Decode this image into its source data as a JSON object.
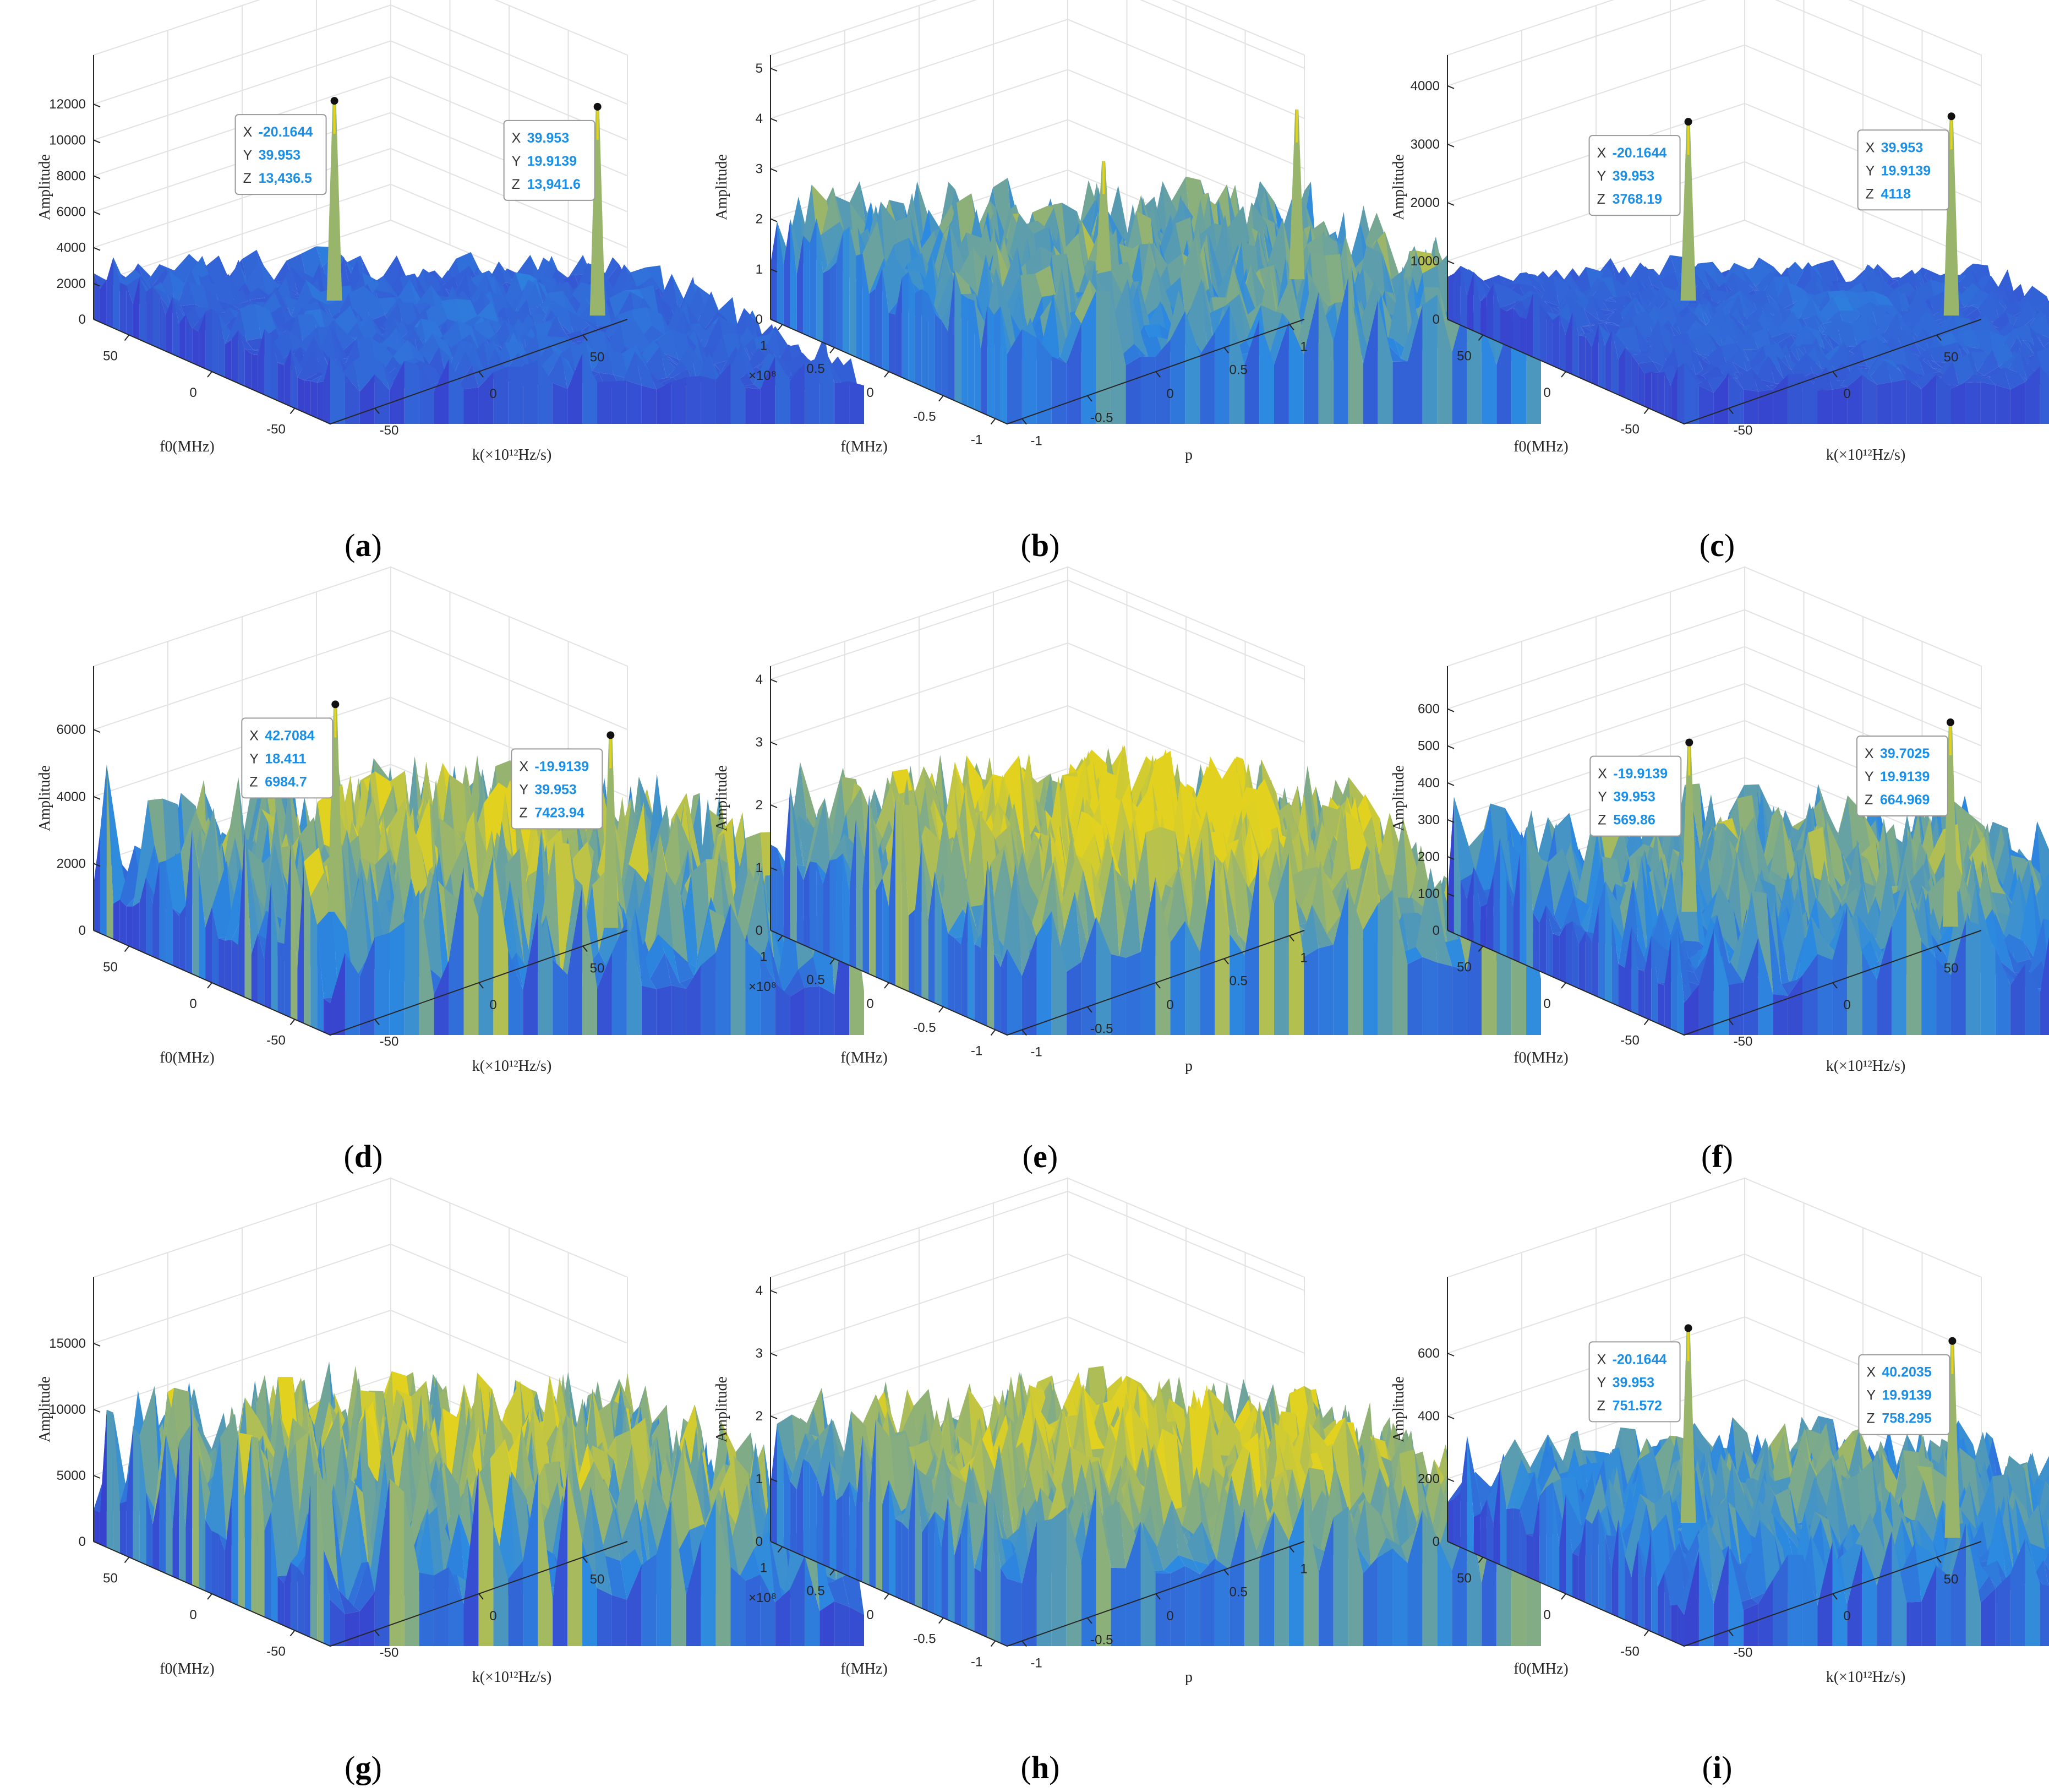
{
  "colors": {
    "axis": "#262626",
    "grid": "#e2e2e2",
    "tip_value": "#1a8fe8",
    "tip_border": "#9a9a9a",
    "surface_low": "#3c27c8",
    "surface_mid": "#2c8ae0",
    "surface_high": "#e2d21f"
  },
  "chart_data": [
    {
      "id": "a",
      "type": "surface",
      "caption": "a",
      "style": "kf",
      "xlabel": "k(×10¹²Hz/s)",
      "ylabel": "f0(MHz)",
      "zlabel": "Amplitude",
      "zticks": [
        "0",
        "2000",
        "4000",
        "6000",
        "8000",
        "10000",
        "12000"
      ],
      "zlim": [
        0,
        14000
      ],
      "yticks": [
        "50",
        "0",
        "-50"
      ],
      "xticks": [
        "-50",
        "0",
        "50"
      ],
      "noise": 0.16,
      "hump": 0.04,
      "peaks": [
        {
          "x": 39.953,
          "y": 19.9139,
          "z": 13941.6
        },
        {
          "x": -20.1644,
          "y": 39.953,
          "z": 13436.5
        }
      ],
      "tips": [
        {
          "X": "-20.1644",
          "Y": "39.953",
          "Z": "13,436.5"
        },
        {
          "X": "39.953",
          "Y": "19.9139",
          "Z": "13,941.6"
        }
      ]
    },
    {
      "id": "b",
      "type": "surface",
      "caption": "b",
      "style": "pf",
      "xlabel": "p",
      "ylabel": "f(MHz)",
      "zlabel": "Amplitude",
      "zticks": [
        "0",
        "1",
        "2",
        "3",
        "4",
        "5"
      ],
      "zlim": [
        0,
        5
      ],
      "yticks": [
        "1",
        "0.5",
        "0",
        "-0.5",
        "-1"
      ],
      "xticks": [
        "-1",
        "-0.5",
        "0",
        "0.5",
        "1"
      ],
      "yexp": "×10⁸",
      "noise": 0.36,
      "hump": 0.05,
      "peaks": [
        {
          "x": 0.75,
          "y": 0.6,
          "z": 4.7
        },
        {
          "x": 0.1,
          "y": 0.8,
          "z": 3.5
        }
      ],
      "tips": []
    },
    {
      "id": "c",
      "type": "surface",
      "caption": "c",
      "style": "kf",
      "xlabel": "k(×10¹²Hz/s)",
      "ylabel": "f0(MHz)",
      "zlabel": "Amplitude",
      "zticks": [
        "0",
        "1000",
        "2000",
        "3000",
        "4000"
      ],
      "zlim": [
        0,
        4300
      ],
      "yticks": [
        "50",
        "0",
        "-50"
      ],
      "xticks": [
        "-50",
        "0",
        "50"
      ],
      "noise": 0.12,
      "hump": 0.06,
      "peaks": [
        {
          "x": 39.953,
          "y": 19.9139,
          "z": 4118
        },
        {
          "x": -20.1644,
          "y": 39.953,
          "z": 3768.19
        }
      ],
      "tips": [
        {
          "X": "-20.1644",
          "Y": "39.953",
          "Z": "3768.19"
        },
        {
          "X": "39.953",
          "Y": "19.9139",
          "Z": "4118"
        }
      ]
    },
    {
      "id": "d",
      "type": "surface",
      "caption": "d",
      "style": "kf",
      "xlabel": "k(×10¹²Hz/s)",
      "ylabel": "f0(MHz)",
      "zlabel": "Amplitude",
      "zticks": [
        "0",
        "2000",
        "4000",
        "6000"
      ],
      "zlim": [
        0,
        7500
      ],
      "yticks": [
        "50",
        "0",
        "-50"
      ],
      "xticks": [
        "-50",
        "0",
        "50"
      ],
      "noise": 0.55,
      "hump": 0.22,
      "peaks": [
        {
          "x": -19.9139,
          "y": 39.953,
          "z": 7423.94
        },
        {
          "x": 42.7084,
          "y": 18.411,
          "z": 6984.7
        }
      ],
      "tips": [
        {
          "X": "-19.9139",
          "Y": "39.953",
          "Z": "7423.94"
        },
        {
          "X": "42.7084",
          "Y": "18.411",
          "Z": "6984.7"
        }
      ]
    },
    {
      "id": "e",
      "type": "surface",
      "caption": "e",
      "style": "pf",
      "xlabel": "p",
      "ylabel": "f(MHz)",
      "zlabel": "Amplitude",
      "zticks": [
        "0",
        "1",
        "2",
        "3",
        "4"
      ],
      "zlim": [
        0,
        4
      ],
      "yticks": [
        "1",
        "0.5",
        "0",
        "-0.5",
        "-1"
      ],
      "xticks": [
        "-1",
        "-0.5",
        "0",
        "0.5",
        "1"
      ],
      "yexp": "×10⁸",
      "noise": 0.45,
      "hump": 0.28,
      "peaks": [],
      "tips": []
    },
    {
      "id": "f",
      "type": "surface",
      "caption": "f",
      "style": "kf",
      "xlabel": "k(×10¹²Hz/s)",
      "ylabel": "f0(MHz)",
      "zlabel": "Amplitude",
      "zticks": [
        "0",
        "100",
        "200",
        "300",
        "400",
        "500",
        "600"
      ],
      "zlim": [
        0,
        680
      ],
      "yticks": [
        "50",
        "0",
        "-50"
      ],
      "xticks": [
        "-50",
        "0",
        "50"
      ],
      "noise": 0.42,
      "hump": 0.18,
      "peaks": [
        {
          "x": 39.7025,
          "y": 19.9139,
          "z": 664.969
        },
        {
          "x": -19.9139,
          "y": 39.953,
          "z": 569.86
        }
      ],
      "tips": [
        {
          "X": "-19.9139",
          "Y": "39.953",
          "Z": "569.86"
        },
        {
          "X": "39.7025",
          "Y": "19.9139",
          "Z": "664.969"
        }
      ]
    },
    {
      "id": "g",
      "type": "surface",
      "caption": "g",
      "style": "kf",
      "xlabel": "k(×10¹²Hz/s)",
      "ylabel": "f0(MHz)",
      "zlabel": "Amplitude",
      "zticks": [
        "0",
        "5000",
        "10000",
        "15000"
      ],
      "zlim": [
        0,
        19000
      ],
      "yticks": [
        "50",
        "0",
        "-50"
      ],
      "xticks": [
        "-50",
        "0",
        "50"
      ],
      "noise": 0.55,
      "hump": 0.22,
      "peaks": [],
      "tips": []
    },
    {
      "id": "h",
      "type": "surface",
      "caption": "h",
      "style": "pf",
      "xlabel": "p",
      "ylabel": "f(MHz)",
      "zlabel": "Amplitude",
      "zticks": [
        "0",
        "1",
        "2",
        "3",
        "4"
      ],
      "zlim": [
        0,
        4
      ],
      "yticks": [
        "1",
        "0.5",
        "0",
        "-0.5",
        "-1"
      ],
      "xticks": [
        "-1",
        "-0.5",
        "0",
        "0.5",
        "1"
      ],
      "yexp": "×10⁸",
      "noise": 0.42,
      "hump": 0.24,
      "peaks": [],
      "tips": []
    },
    {
      "id": "i",
      "type": "surface",
      "caption": "i",
      "style": "kf",
      "xlabel": "k(×10¹²Hz/s)",
      "ylabel": "f0(MHz)",
      "zlabel": "Amplitude",
      "zticks": [
        "0",
        "200",
        "400",
        "600"
      ],
      "zlim": [
        0,
        800
      ],
      "yticks": [
        "50",
        "0",
        "-50"
      ],
      "xticks": [
        "-50",
        "0",
        "50"
      ],
      "noise": 0.36,
      "hump": 0.18,
      "peaks": [
        {
          "x": 40.2035,
          "y": 19.9139,
          "z": 758.295
        },
        {
          "x": -20.1644,
          "y": 39.953,
          "z": 751.572
        }
      ],
      "tips": [
        {
          "X": "-20.1644",
          "Y": "39.953",
          "Z": "751.572"
        },
        {
          "X": "40.2035",
          "Y": "19.9139",
          "Z": "758.295"
        }
      ]
    }
  ]
}
